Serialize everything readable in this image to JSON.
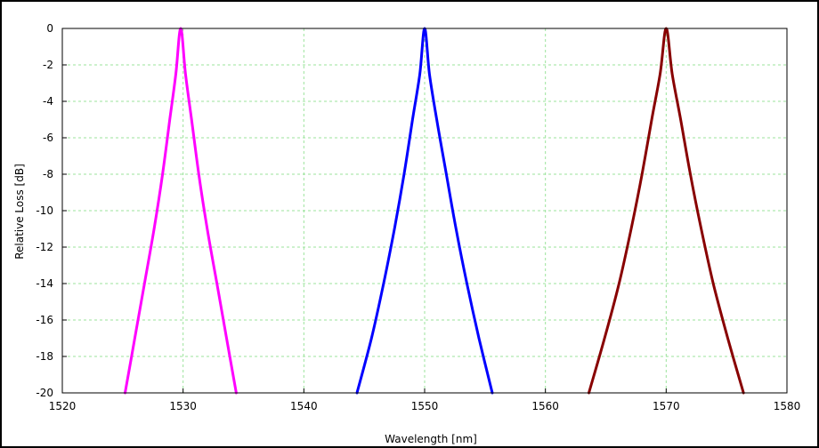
{
  "chart_data": {
    "type": "line",
    "title": "",
    "xlabel": "Wavelength [nm]",
    "ylabel": "Relative Loss [dB]",
    "xlim": [
      1520,
      1580
    ],
    "ylim": [
      -20,
      0
    ],
    "xticks": [
      1520,
      1530,
      1540,
      1550,
      1560,
      1570,
      1580
    ],
    "yticks": [
      0,
      -2,
      -4,
      -6,
      -8,
      -10,
      -12,
      -14,
      -16,
      -18,
      -20
    ],
    "grid": true,
    "legend": "none",
    "series": [
      {
        "color": "#ff00ff",
        "x": [
          1525.2,
          1526.0,
          1526.8,
          1527.6,
          1528.3,
          1528.9,
          1529.4,
          1529.8,
          1530.2,
          1530.7,
          1531.3,
          1532.0,
          1532.8,
          1533.6,
          1534.4
        ],
        "y": [
          -20,
          -17,
          -14,
          -11,
          -8,
          -5,
          -2.5,
          0,
          -2.5,
          -5,
          -8,
          -11,
          -14,
          -17,
          -20
        ]
      },
      {
        "color": "#0000ff",
        "x": [
          1544.4,
          1545.6,
          1546.6,
          1547.5,
          1548.3,
          1549.0,
          1549.6,
          1550.0,
          1550.4,
          1551.0,
          1551.8,
          1552.6,
          1553.5,
          1554.5,
          1555.6
        ],
        "y": [
          -20,
          -17,
          -14,
          -11,
          -8,
          -5,
          -2.5,
          0,
          -2.5,
          -5,
          -8,
          -11,
          -14,
          -17,
          -20
        ]
      },
      {
        "color": "#880000",
        "x": [
          1563.6,
          1564.9,
          1566.1,
          1567.1,
          1568.0,
          1568.8,
          1569.5,
          1570.0,
          1570.5,
          1571.2,
          1572.0,
          1572.9,
          1573.9,
          1575.1,
          1576.4
        ],
        "y": [
          -20,
          -17,
          -14,
          -11,
          -8,
          -5,
          -2.5,
          0,
          -2.5,
          -5,
          -8,
          -11,
          -14,
          -17,
          -20
        ]
      }
    ]
  }
}
